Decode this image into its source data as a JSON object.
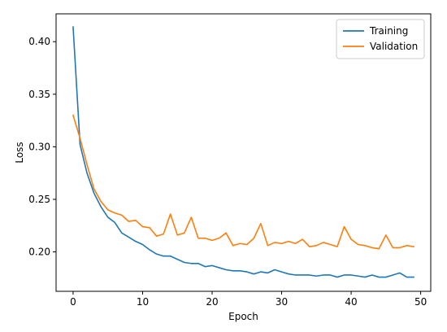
{
  "chart_data": {
    "type": "line",
    "title": "",
    "xlabel": "Epoch",
    "ylabel": "Loss",
    "xlim": [
      -2.45,
      51.45
    ],
    "ylim": [
      0.1625,
      0.4265
    ],
    "xticks": [
      0,
      10,
      20,
      30,
      40,
      50
    ],
    "yticks": [
      0.2,
      0.25,
      0.3,
      0.35,
      0.4
    ],
    "ytick_labels": [
      "0.20",
      "0.25",
      "0.30",
      "0.35",
      "0.40"
    ],
    "grid": false,
    "legend_position": "upper right",
    "x": [
      0,
      1,
      2,
      3,
      4,
      5,
      6,
      7,
      8,
      9,
      10,
      11,
      12,
      13,
      14,
      15,
      16,
      17,
      18,
      19,
      20,
      21,
      22,
      23,
      24,
      25,
      26,
      27,
      28,
      29,
      30,
      31,
      32,
      33,
      34,
      35,
      36,
      37,
      38,
      39,
      40,
      41,
      42,
      43,
      44,
      45,
      46,
      47,
      48,
      49
    ],
    "series": [
      {
        "name": "Training",
        "color": "#1f77b4",
        "values": [
          0.414,
          0.302,
          0.275,
          0.256,
          0.243,
          0.233,
          0.228,
          0.218,
          0.214,
          0.21,
          0.207,
          0.202,
          0.198,
          0.196,
          0.196,
          0.193,
          0.19,
          0.189,
          0.189,
          0.186,
          0.187,
          0.185,
          0.183,
          0.182,
          0.182,
          0.181,
          0.179,
          0.181,
          0.18,
          0.183,
          0.181,
          0.179,
          0.178,
          0.178,
          0.178,
          0.177,
          0.178,
          0.178,
          0.176,
          0.178,
          0.178,
          0.177,
          0.176,
          0.178,
          0.176,
          0.176,
          0.178,
          0.18,
          0.176,
          0.176
        ]
      },
      {
        "name": "Validation",
        "color": "#ff7f0e",
        "values": [
          0.33,
          0.308,
          0.283,
          0.26,
          0.248,
          0.24,
          0.237,
          0.235,
          0.229,
          0.23,
          0.224,
          0.223,
          0.215,
          0.217,
          0.236,
          0.216,
          0.218,
          0.233,
          0.213,
          0.213,
          0.211,
          0.213,
          0.218,
          0.206,
          0.208,
          0.207,
          0.213,
          0.227,
          0.206,
          0.209,
          0.208,
          0.21,
          0.208,
          0.212,
          0.205,
          0.206,
          0.209,
          0.207,
          0.205,
          0.224,
          0.212,
          0.207,
          0.206,
          0.204,
          0.203,
          0.216,
          0.204,
          0.204,
          0.206,
          0.205
        ]
      }
    ]
  }
}
